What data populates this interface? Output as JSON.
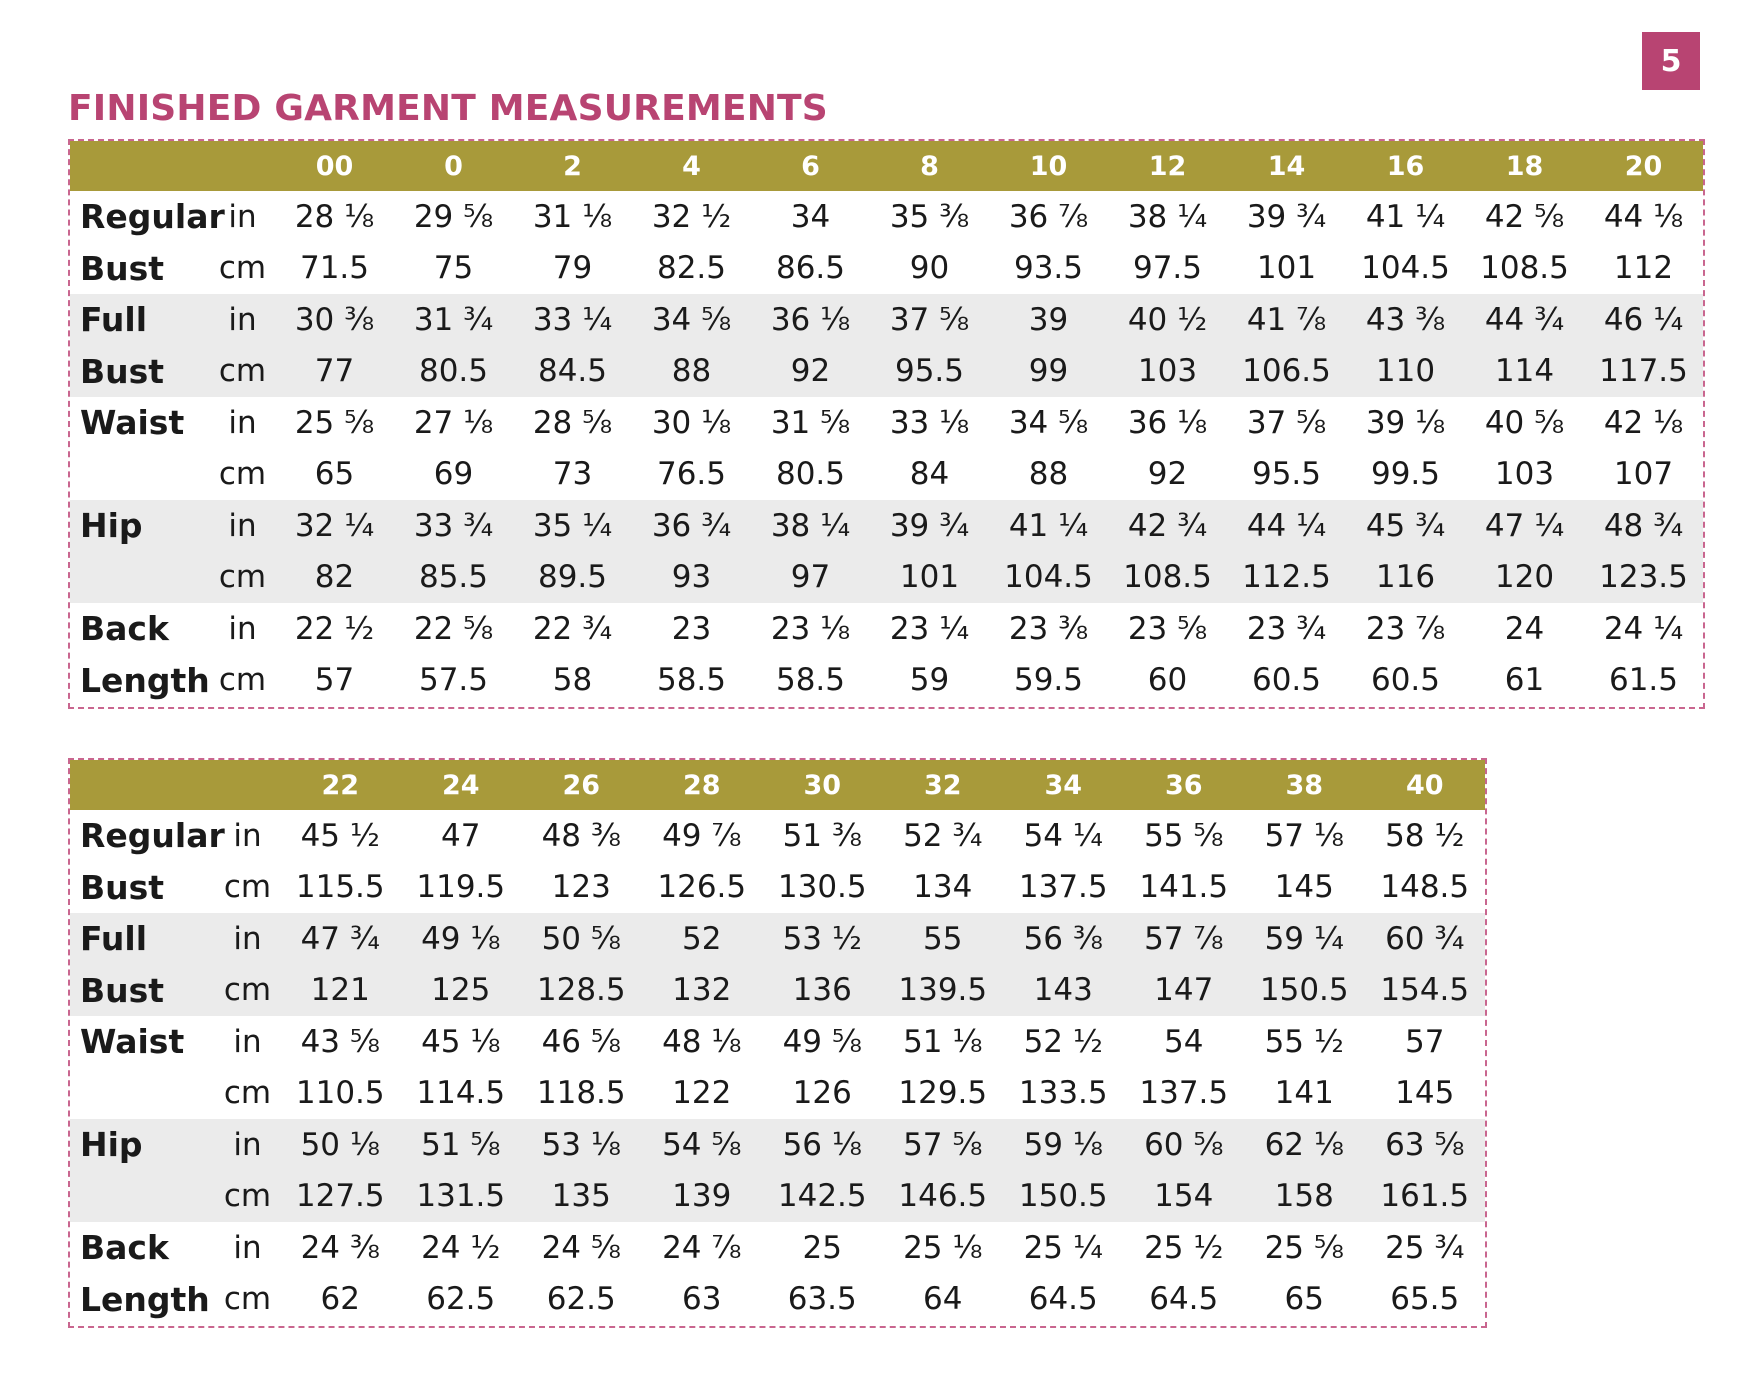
{
  "page_number": "5",
  "title": "FINISHED GARMENT MEASUREMENTS",
  "tables": [
    {
      "sizes": [
        "00",
        "0",
        "2",
        "4",
        "6",
        "8",
        "10",
        "12",
        "14",
        "16",
        "18",
        "20"
      ],
      "rows": [
        {
          "label": "Regular",
          "unit": "in",
          "values": [
            "28 ⅛",
            "29 ⅝",
            "31 ⅛",
            "32 ½",
            "34",
            "35 ⅜",
            "36 ⅞",
            "38 ¼",
            "39 ¾",
            "41 ¼",
            "42 ⅝",
            "44 ⅛"
          ]
        },
        {
          "label": "Bust",
          "unit": "cm",
          "values": [
            "71.5",
            "75",
            "79",
            "82.5",
            "86.5",
            "90",
            "93.5",
            "97.5",
            "101",
            "104.5",
            "108.5",
            "112"
          ]
        },
        {
          "label": "Full",
          "unit": "in",
          "values": [
            "30 ⅜",
            "31 ¾",
            "33 ¼",
            "34 ⅝",
            "36 ⅛",
            "37 ⅝",
            "39",
            "40 ½",
            "41 ⅞",
            "43 ⅜",
            "44 ¾",
            "46 ¼"
          ]
        },
        {
          "label": "Bust",
          "unit": "cm",
          "values": [
            "77",
            "80.5",
            "84.5",
            "88",
            "92",
            "95.5",
            "99",
            "103",
            "106.5",
            "110",
            "114",
            "117.5"
          ]
        },
        {
          "label": "Waist",
          "unit": "in",
          "values": [
            "25 ⅝",
            "27 ⅛",
            "28 ⅝",
            "30 ⅛",
            "31 ⅝",
            "33 ⅛",
            "34 ⅝",
            "36 ⅛",
            "37 ⅝",
            "39 ⅛",
            "40 ⅝",
            "42 ⅛"
          ]
        },
        {
          "label": "",
          "unit": "cm",
          "values": [
            "65",
            "69",
            "73",
            "76.5",
            "80.5",
            "84",
            "88",
            "92",
            "95.5",
            "99.5",
            "103",
            "107"
          ]
        },
        {
          "label": "Hip",
          "unit": "in",
          "values": [
            "32 ¼",
            "33 ¾",
            "35 ¼",
            "36 ¾",
            "38 ¼",
            "39 ¾",
            "41 ¼",
            "42 ¾",
            "44 ¼",
            "45 ¾",
            "47 ¼",
            "48 ¾"
          ]
        },
        {
          "label": "",
          "unit": "cm",
          "values": [
            "82",
            "85.5",
            "89.5",
            "93",
            "97",
            "101",
            "104.5",
            "108.5",
            "112.5",
            "116",
            "120",
            "123.5"
          ]
        },
        {
          "label": "Back",
          "unit": "in",
          "values": [
            "22 ½",
            "22 ⅝",
            "22 ¾",
            "23",
            "23 ⅛",
            "23 ¼",
            "23 ⅜",
            "23 ⅝",
            "23 ¾",
            "23 ⅞",
            "24",
            "24 ¼"
          ]
        },
        {
          "label": "Length",
          "unit": "cm",
          "values": [
            "57",
            "57.5",
            "58",
            "58.5",
            "58.5",
            "59",
            "59.5",
            "60",
            "60.5",
            "60.5",
            "61",
            "61.5"
          ]
        }
      ]
    },
    {
      "sizes": [
        "22",
        "24",
        "26",
        "28",
        "30",
        "32",
        "34",
        "36",
        "38",
        "40"
      ],
      "rows": [
        {
          "label": "Regular",
          "unit": "in",
          "values": [
            "45 ½",
            "47",
            "48 ⅜",
            "49 ⅞",
            "51 ⅜",
            "52 ¾",
            "54 ¼",
            "55 ⅝",
            "57 ⅛",
            "58 ½"
          ]
        },
        {
          "label": "Bust",
          "unit": "cm",
          "values": [
            "115.5",
            "119.5",
            "123",
            "126.5",
            "130.5",
            "134",
            "137.5",
            "141.5",
            "145",
            "148.5"
          ]
        },
        {
          "label": "Full",
          "unit": "in",
          "values": [
            "47 ¾",
            "49 ⅛",
            "50 ⅝",
            "52",
            "53 ½",
            "55",
            "56 ⅜",
            "57 ⅞",
            "59 ¼",
            "60 ¾"
          ]
        },
        {
          "label": "Bust",
          "unit": "cm",
          "values": [
            "121",
            "125",
            "128.5",
            "132",
            "136",
            "139.5",
            "143",
            "147",
            "150.5",
            "154.5"
          ]
        },
        {
          "label": "Waist",
          "unit": "in",
          "values": [
            "43 ⅝",
            "45 ⅛",
            "46 ⅝",
            "48 ⅛",
            "49 ⅝",
            "51 ⅛",
            "52 ½",
            "54",
            "55 ½",
            "57"
          ]
        },
        {
          "label": "",
          "unit": "cm",
          "values": [
            "110.5",
            "114.5",
            "118.5",
            "122",
            "126",
            "129.5",
            "133.5",
            "137.5",
            "141",
            "145"
          ]
        },
        {
          "label": "Hip",
          "unit": "in",
          "values": [
            "50 ⅛",
            "51 ⅝",
            "53 ⅛",
            "54 ⅝",
            "56 ⅛",
            "57 ⅝",
            "59 ⅛",
            "60 ⅝",
            "62 ⅛",
            "63 ⅝"
          ]
        },
        {
          "label": "",
          "unit": "cm",
          "values": [
            "127.5",
            "131.5",
            "135",
            "139",
            "142.5",
            "146.5",
            "150.5",
            "154",
            "158",
            "161.5"
          ]
        },
        {
          "label": "Back",
          "unit": "in",
          "values": [
            "24 ⅜",
            "24 ½",
            "24 ⅝",
            "24 ⅞",
            "25",
            "25 ⅛",
            "25 ¼",
            "25 ½",
            "25 ⅝",
            "25 ¾"
          ]
        },
        {
          "label": "Length",
          "unit": "cm",
          "values": [
            "62",
            "62.5",
            "62.5",
            "63",
            "63.5",
            "64",
            "64.5",
            "64.5",
            "65",
            "65.5"
          ]
        }
      ]
    }
  ]
}
